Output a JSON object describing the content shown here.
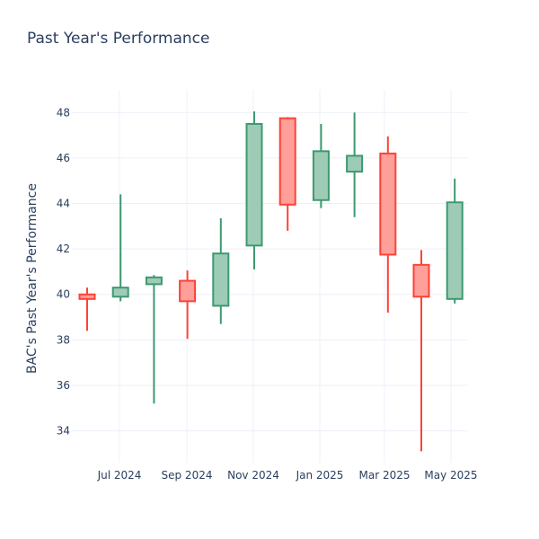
{
  "chart_data": {
    "type": "candlestick",
    "title": "Past Year's Performance",
    "xlabel": "",
    "ylabel": "BAC's Past Year's Performance",
    "ylim": [
      32.6,
      49.0
    ],
    "yticks": [
      34,
      36,
      38,
      40,
      42,
      44,
      46,
      48
    ],
    "xticks": [
      "Jul 2024",
      "Sep 2024",
      "Nov 2024",
      "Jan 2025",
      "Mar 2025",
      "May 2025"
    ],
    "grid": true,
    "increasing_color": "#3d9970",
    "increasing_fill": "#9ecbb6",
    "decreasing_color": "#ff4136",
    "decreasing_fill": "#ff9f9a",
    "candles": [
      {
        "open": 40.0,
        "high": 40.3,
        "low": 38.4,
        "close": 39.8
      },
      {
        "open": 39.9,
        "high": 44.4,
        "low": 39.7,
        "close": 40.3
      },
      {
        "open": 40.45,
        "high": 40.85,
        "low": 35.2,
        "close": 40.75
      },
      {
        "open": 40.6,
        "high": 41.05,
        "low": 38.05,
        "close": 39.7
      },
      {
        "open": 39.5,
        "high": 43.35,
        "low": 38.7,
        "close": 41.8
      },
      {
        "open": 42.15,
        "high": 48.05,
        "low": 41.1,
        "close": 47.5
      },
      {
        "open": 47.75,
        "high": 47.8,
        "low": 42.8,
        "close": 43.95
      },
      {
        "open": 44.15,
        "high": 47.5,
        "low": 43.8,
        "close": 46.3
      },
      {
        "open": 45.4,
        "high": 48.0,
        "low": 43.4,
        "close": 46.1
      },
      {
        "open": 46.2,
        "high": 46.95,
        "low": 39.2,
        "close": 41.75
      },
      {
        "open": 41.3,
        "high": 41.95,
        "low": 33.1,
        "close": 39.9
      },
      {
        "open": 39.8,
        "high": 45.1,
        "low": 39.6,
        "close": 44.05
      }
    ]
  }
}
